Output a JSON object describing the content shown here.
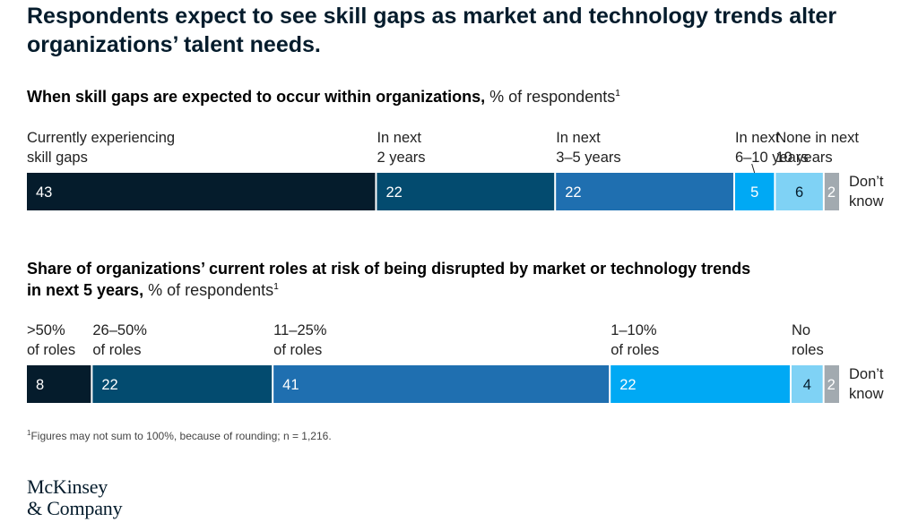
{
  "title": {
    "line1": "Respondents expect to see skill gaps as market and technology trends alter",
    "line2": "organizations’ talent needs."
  },
  "chart_data": [
    {
      "type": "bar",
      "stacked": true,
      "orientation": "horizontal",
      "title": "When skill gaps are expected to occur within organizations,",
      "unit": "% of respondents",
      "footnote_ref": "1",
      "categories": [
        {
          "label": [
            "Currently experiencing",
            "skill gaps"
          ],
          "value": 43,
          "color": "#051c2c"
        },
        {
          "label": [
            "In next",
            "2 years"
          ],
          "value": 22,
          "color": "#034b6f"
        },
        {
          "label": [
            "In next",
            "3–5 years"
          ],
          "value": 22,
          "color": "#1f6fb0"
        },
        {
          "label": [
            "In next",
            "6–10 years"
          ],
          "value": 5,
          "color": "#00a9f4"
        },
        {
          "label": [
            "None in next",
            "10 years"
          ],
          "value": 6,
          "color": "#7fd2f5"
        },
        {
          "label": [
            "Don’t",
            "know"
          ],
          "value": 2,
          "color": "#a2aab0"
        }
      ]
    },
    {
      "type": "bar",
      "stacked": true,
      "orientation": "horizontal",
      "title_line1": "Share of organizations’ current roles at risk of being disrupted by market or technology trends",
      "title_line2": "in next 5 years,",
      "unit": "% of respondents",
      "footnote_ref": "1",
      "categories": [
        {
          "label": [
            ">50%",
            "of roles"
          ],
          "value": 8,
          "color": "#051c2c"
        },
        {
          "label": [
            "26–50%",
            "of roles"
          ],
          "value": 22,
          "color": "#034b6f"
        },
        {
          "label": [
            "11–25%",
            "of roles"
          ],
          "value": 41,
          "color": "#1f6fb0"
        },
        {
          "label": [
            "1–10%",
            "of roles"
          ],
          "value": 22,
          "color": "#00a9f4"
        },
        {
          "label": [
            "No",
            "roles"
          ],
          "value": 4,
          "color": "#7fd2f5"
        },
        {
          "label": [
            "Don’t",
            "know"
          ],
          "value": 2,
          "color": "#a2aab0"
        }
      ]
    }
  ],
  "footnote": {
    "marker": "1",
    "text": "Figures may not sum to 100%, because of rounding; n = 1,216."
  },
  "logo": {
    "line1": "McKinsey",
    "line2": "& Company"
  }
}
